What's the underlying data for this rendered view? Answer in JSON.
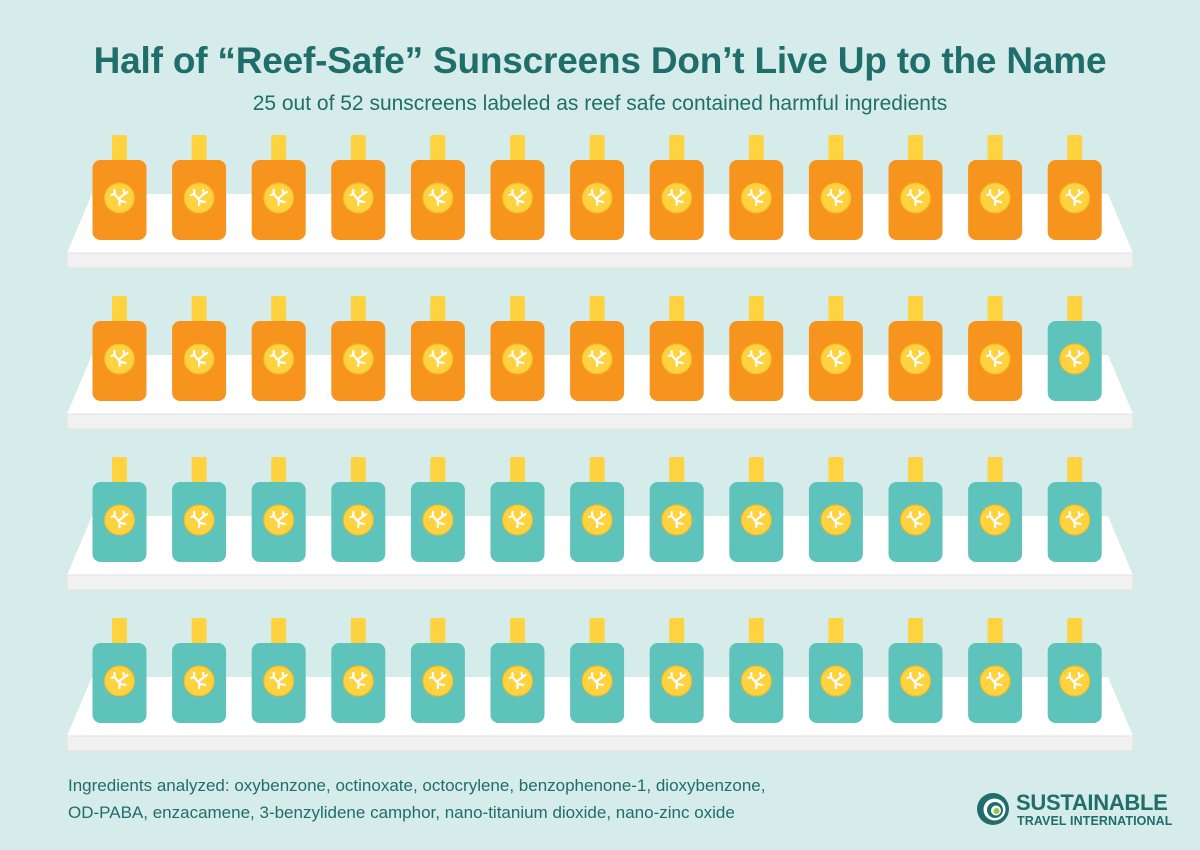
{
  "title": "Half of “Reef-Safe” Sunscreens Don’t Live Up to the Name",
  "subtitle": "25 out of 52 sunscreens labeled as reef safe contained harmful ingredients",
  "chart_data": {
    "type": "pictogram",
    "total": 52,
    "columns": 13,
    "rows": 4,
    "series": [
      {
        "value": 25,
        "color": "#f7941d"
      },
      {
        "value": 27,
        "color": "#5ec4bb"
      }
    ]
  },
  "colors": {
    "background": "#d6ecea",
    "heading": "#1f6e6b",
    "harmful_bottle": "#f7941d",
    "other_bottle": "#5ec4bb",
    "cap": "#ffd23f",
    "label": "#ffd23f",
    "shelf_top": "#ffffff",
    "shelf_front": "#f1f1f1"
  },
  "icons": {
    "bottle": "sunscreen-bottle-icon",
    "label": "coral-icon",
    "logo": "spiral-logo-icon"
  },
  "footnote": {
    "line1": "Ingredients analyzed: oxybenzone, octinoxate, octocrylene, benzophenone-1, dioxybenzone,",
    "line2": "OD-PABA, enzacamene, 3-benzylidene camphor, nano-titanium dioxide, nano-zinc oxide"
  },
  "logo": {
    "line1": "SUSTAINABLE",
    "line2": "TRAVEL INTERNATIONAL"
  }
}
